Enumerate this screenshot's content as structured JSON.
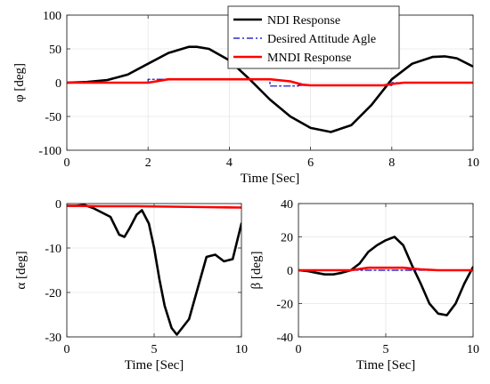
{
  "chart_data": [
    {
      "type": "line",
      "xlabel": "Time  [Sec]",
      "ylabel": "φ  [deg]",
      "xlim": [
        0,
        10
      ],
      "ylim": [
        -100,
        100
      ],
      "xticks": [
        "0",
        "2",
        "4",
        "6",
        "8",
        "10"
      ],
      "yticks": [
        "100",
        "50",
        "0",
        "-50",
        "-100"
      ],
      "grid": true,
      "legend": "top-right",
      "series": [
        {
          "name": "NDI Response",
          "color": "#000000",
          "style": "solid",
          "x": [
            0,
            0.5,
            1,
            1.5,
            2,
            2.5,
            3,
            3.2,
            3.5,
            4,
            4.5,
            5,
            5.5,
            6,
            6.5,
            7,
            7.5,
            8,
            8.5,
            9,
            9.3,
            9.6,
            10
          ],
          "y": [
            0,
            1,
            4,
            12,
            28,
            44,
            53,
            53,
            50,
            33,
            5,
            -25,
            -50,
            -67,
            -73,
            -63,
            -33,
            5,
            28,
            38,
            39,
            36,
            24
          ]
        },
        {
          "name": "Desired Attitude Agle",
          "color": "#0000cc",
          "style": "dashdot",
          "x": [
            0,
            2,
            2,
            2.5,
            2.5,
            5,
            5,
            5.7,
            5.7,
            8,
            8,
            8.4,
            8.4,
            10
          ],
          "y": [
            0,
            0,
            5,
            5,
            5,
            5,
            -5,
            -5,
            -4,
            -4,
            0,
            0,
            0,
            0
          ]
        },
        {
          "name": "MNDI Response",
          "color": "#ff0000",
          "style": "solid",
          "x": [
            0,
            2,
            2.2,
            2.5,
            3,
            4,
            5,
            5.5,
            5.8,
            6,
            7,
            7.8,
            8,
            8.3,
            8.6,
            10
          ],
          "y": [
            0,
            0,
            2,
            5,
            5,
            5,
            5,
            2,
            -3,
            -4,
            -4,
            -4,
            -2,
            0,
            0,
            0
          ]
        }
      ]
    },
    {
      "type": "line",
      "xlabel": "Time  [Sec]",
      "ylabel": "α  [deg]",
      "xlim": [
        0,
        10
      ],
      "ylim": [
        -30,
        0
      ],
      "xticks": [
        "0",
        "5",
        "10"
      ],
      "yticks": [
        "0",
        "-10",
        "-20",
        "-30"
      ],
      "grid": true,
      "series": [
        {
          "name": "",
          "color": "#000000",
          "style": "solid",
          "x": [
            0,
            0.5,
            1,
            1.5,
            2,
            2.5,
            3,
            3.3,
            3.6,
            4,
            4.3,
            4.7,
            5,
            5.3,
            5.6,
            6,
            6.3,
            6.6,
            7,
            7.5,
            8,
            8.5,
            9,
            9.5,
            10
          ],
          "y": [
            -0.5,
            -0.5,
            -0.3,
            -1,
            -2,
            -3,
            -7,
            -7.5,
            -5.5,
            -2.5,
            -1.5,
            -4.5,
            -10,
            -17,
            -23,
            -28,
            -29.5,
            -28,
            -26,
            -19,
            -12,
            -11.5,
            -13,
            -12.5,
            -4.5
          ]
        },
        {
          "name": "",
          "color": "#ff0000",
          "style": "solid",
          "x": [
            0,
            2,
            4,
            6,
            8,
            10
          ],
          "y": [
            -0.5,
            -0.6,
            -0.6,
            -0.7,
            -0.8,
            -0.9
          ]
        }
      ]
    },
    {
      "type": "line",
      "xlabel": "Time  [Sec]",
      "ylabel": "β  [deg]",
      "xlim": [
        0,
        10
      ],
      "ylim": [
        -40,
        40
      ],
      "xticks": [
        "0",
        "5",
        "10"
      ],
      "yticks": [
        "40",
        "20",
        "0",
        "-20",
        "-40"
      ],
      "grid": true,
      "series": [
        {
          "name": "",
          "color": "#000000",
          "style": "solid",
          "x": [
            0,
            0.5,
            1,
            1.5,
            2,
            2.5,
            3,
            3.5,
            4,
            4.5,
            5,
            5.5,
            6,
            6.5,
            7,
            7.5,
            8,
            8.5,
            9,
            9.5,
            10
          ],
          "y": [
            0,
            -0.5,
            -1.5,
            -2.5,
            -2.5,
            -1.5,
            0,
            4,
            11,
            15,
            18,
            20,
            15,
            3,
            -8,
            -20,
            -26,
            -27,
            -20,
            -8,
            2
          ]
        },
        {
          "name": "",
          "color": "#0000cc",
          "style": "dashdot",
          "x": [
            0,
            10
          ],
          "y": [
            0,
            0
          ]
        },
        {
          "name": "",
          "color": "#ff0000",
          "style": "solid",
          "x": [
            0,
            3,
            4,
            5,
            6,
            7,
            8,
            9,
            10
          ],
          "y": [
            0,
            0,
            1.5,
            1.5,
            1.5,
            0.5,
            0,
            0,
            0
          ]
        }
      ]
    }
  ]
}
